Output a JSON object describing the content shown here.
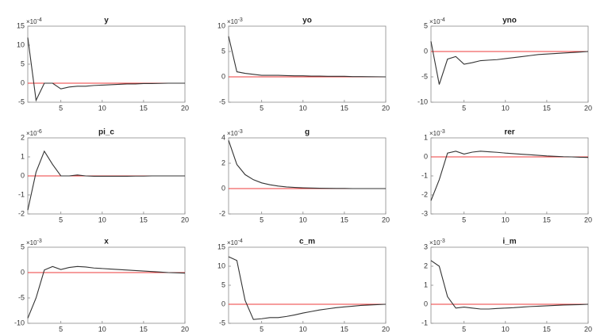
{
  "chart_data": [
    {
      "type": "line",
      "title": "y",
      "multiplier": "×10",
      "exponent": "-4",
      "x": [
        1,
        2,
        3,
        4,
        5,
        6,
        7,
        8,
        9,
        10,
        11,
        12,
        13,
        14,
        15,
        16,
        17,
        18,
        19,
        20
      ],
      "xlim": [
        1,
        20
      ],
      "xticks": [
        5,
        10,
        15,
        20
      ],
      "ylim": [
        -5,
        15
      ],
      "yticks": [
        -5,
        0,
        5,
        10,
        15
      ],
      "color": "#333333",
      "hline": {
        "value": 0,
        "color": "#ee3b3b"
      },
      "values": [
        12,
        -4.5,
        0,
        0,
        -1.5,
        -1,
        -0.8,
        -0.8,
        -0.6,
        -0.5,
        -0.4,
        -0.3,
        -0.2,
        -0.2,
        -0.1,
        -0.1,
        -0.05,
        0,
        0,
        0
      ]
    },
    {
      "type": "line",
      "title": "yo",
      "multiplier": "×10",
      "exponent": "-3",
      "x": [
        1,
        2,
        3,
        4,
        5,
        6,
        7,
        8,
        9,
        10,
        11,
        12,
        13,
        14,
        15,
        16,
        17,
        18,
        19,
        20
      ],
      "xlim": [
        1,
        20
      ],
      "xticks": [
        5,
        10,
        15,
        20
      ],
      "ylim": [
        -5,
        10
      ],
      "yticks": [
        -5,
        0,
        5,
        10
      ],
      "color": "#333333",
      "hline": {
        "value": 0,
        "color": "#ee3b3b"
      },
      "values": [
        8,
        1,
        0.7,
        0.5,
        0.3,
        0.3,
        0.3,
        0.25,
        0.2,
        0.2,
        0.15,
        0.15,
        0.1,
        0.1,
        0.1,
        0.05,
        0.05,
        0.03,
        0.02,
        0
      ]
    },
    {
      "type": "line",
      "title": "yno",
      "multiplier": "×10",
      "exponent": "-4",
      "x": [
        1,
        2,
        3,
        4,
        5,
        6,
        7,
        8,
        9,
        10,
        11,
        12,
        13,
        14,
        15,
        16,
        17,
        18,
        19,
        20
      ],
      "xlim": [
        1,
        20
      ],
      "xticks": [
        5,
        10,
        15,
        20
      ],
      "ylim": [
        -10,
        5
      ],
      "yticks": [
        -10,
        -5,
        0,
        5
      ],
      "color": "#333333",
      "hline": {
        "value": 0,
        "color": "#ee3b3b"
      },
      "values": [
        2,
        -6.5,
        -1.5,
        -1,
        -2.5,
        -2.2,
        -1.8,
        -1.7,
        -1.6,
        -1.4,
        -1.2,
        -1,
        -0.8,
        -0.6,
        -0.5,
        -0.4,
        -0.3,
        -0.2,
        -0.1,
        0
      ]
    },
    {
      "type": "line",
      "title": "pi_c",
      "multiplier": "×10",
      "exponent": "-6",
      "x": [
        1,
        2,
        3,
        4,
        5,
        6,
        7,
        8,
        9,
        10,
        11,
        12,
        13,
        14,
        15,
        16,
        17,
        18,
        19,
        20
      ],
      "xlim": [
        1,
        20
      ],
      "xticks": [
        5,
        10,
        15,
        20
      ],
      "ylim": [
        -2,
        2
      ],
      "yticks": [
        -2,
        -1,
        0,
        1,
        2
      ],
      "color": "#333333",
      "hline": {
        "value": 0,
        "color": "#ee3b3b"
      },
      "values": [
        -1.8,
        0.2,
        1.3,
        0.6,
        0,
        0,
        0.05,
        0,
        -0.02,
        -0.02,
        -0.02,
        -0.02,
        -0.02,
        -0.01,
        -0.01,
        0,
        0,
        0,
        0,
        0
      ]
    },
    {
      "type": "line",
      "title": "g",
      "multiplier": "×10",
      "exponent": "-3",
      "x": [
        1,
        2,
        3,
        4,
        5,
        6,
        7,
        8,
        9,
        10,
        11,
        12,
        13,
        14,
        15,
        16,
        17,
        18,
        19,
        20
      ],
      "xlim": [
        1,
        20
      ],
      "xticks": [
        5,
        10,
        15,
        20
      ],
      "ylim": [
        -2,
        4
      ],
      "yticks": [
        -2,
        0,
        2,
        4
      ],
      "color": "#333333",
      "hline": {
        "value": 0,
        "color": "#ee3b3b"
      },
      "values": [
        3.8,
        1.9,
        1.1,
        0.7,
        0.45,
        0.3,
        0.2,
        0.13,
        0.09,
        0.06,
        0.04,
        0.03,
        0.02,
        0.01,
        0.01,
        0,
        0,
        0,
        0,
        0
      ]
    },
    {
      "type": "line",
      "title": "rer",
      "multiplier": "×10",
      "exponent": "-3",
      "x": [
        1,
        2,
        3,
        4,
        5,
        6,
        7,
        8,
        9,
        10,
        11,
        12,
        13,
        14,
        15,
        16,
        17,
        18,
        19,
        20
      ],
      "xlim": [
        1,
        20
      ],
      "xticks": [
        5,
        10,
        15,
        20
      ],
      "ylim": [
        -3,
        1
      ],
      "yticks": [
        -3,
        -2,
        -1,
        0,
        1
      ],
      "color": "#333333",
      "hline": {
        "value": 0,
        "color": "#ee3b3b"
      },
      "values": [
        -2.3,
        -1.2,
        0.2,
        0.3,
        0.15,
        0.25,
        0.3,
        0.27,
        0.24,
        0.2,
        0.17,
        0.14,
        0.11,
        0.08,
        0.05,
        0.03,
        0.01,
        0,
        -0.02,
        -0.03
      ]
    },
    {
      "type": "line",
      "title": "x",
      "multiplier": "×10",
      "exponent": "-3",
      "x": [
        1,
        2,
        3,
        4,
        5,
        6,
        7,
        8,
        9,
        10,
        11,
        12,
        13,
        14,
        15,
        16,
        17,
        18,
        19,
        20
      ],
      "xlim": [
        1,
        20
      ],
      "xticks": [
        5,
        10,
        15,
        20
      ],
      "ylim": [
        -10,
        5
      ],
      "yticks": [
        -10,
        -5,
        0,
        5
      ],
      "color": "#333333",
      "hline": {
        "value": 0,
        "color": "#ee3b3b"
      },
      "values": [
        -9,
        -5,
        0.5,
        1.2,
        0.6,
        1,
        1.2,
        1.1,
        0.9,
        0.8,
        0.7,
        0.6,
        0.5,
        0.4,
        0.3,
        0.2,
        0.1,
        0,
        -0.05,
        -0.1
      ]
    },
    {
      "type": "line",
      "title": "c_m",
      "multiplier": "×10",
      "exponent": "-4",
      "x": [
        1,
        2,
        3,
        4,
        5,
        6,
        7,
        8,
        9,
        10,
        11,
        12,
        13,
        14,
        15,
        16,
        17,
        18,
        19,
        20
      ],
      "xlim": [
        1,
        20
      ],
      "xticks": [
        5,
        10,
        15,
        20
      ],
      "ylim": [
        -5,
        15
      ],
      "yticks": [
        -5,
        0,
        5,
        10,
        15
      ],
      "color": "#333333",
      "hline": {
        "value": 0,
        "color": "#ee3b3b"
      },
      "values": [
        12.5,
        11.5,
        1,
        -4,
        -3.8,
        -3.5,
        -3.5,
        -3.2,
        -2.8,
        -2.3,
        -1.9,
        -1.5,
        -1.2,
        -0.9,
        -0.7,
        -0.5,
        -0.3,
        -0.2,
        -0.1,
        0
      ]
    },
    {
      "type": "line",
      "title": "i_m",
      "multiplier": "×10",
      "exponent": "-3",
      "x": [
        1,
        2,
        3,
        4,
        5,
        6,
        7,
        8,
        9,
        10,
        11,
        12,
        13,
        14,
        15,
        16,
        17,
        18,
        19,
        20
      ],
      "xlim": [
        1,
        20
      ],
      "xticks": [
        5,
        10,
        15,
        20
      ],
      "ylim": [
        -1,
        3
      ],
      "yticks": [
        -1,
        0,
        1,
        2,
        3
      ],
      "color": "#333333",
      "hline": {
        "value": 0,
        "color": "#ee3b3b"
      },
      "values": [
        2.3,
        2,
        0.4,
        -0.2,
        -0.15,
        -0.2,
        -0.25,
        -0.25,
        -0.22,
        -0.2,
        -0.18,
        -0.15,
        -0.12,
        -0.1,
        -0.08,
        -0.06,
        -0.04,
        -0.03,
        -0.02,
        0
      ]
    }
  ]
}
